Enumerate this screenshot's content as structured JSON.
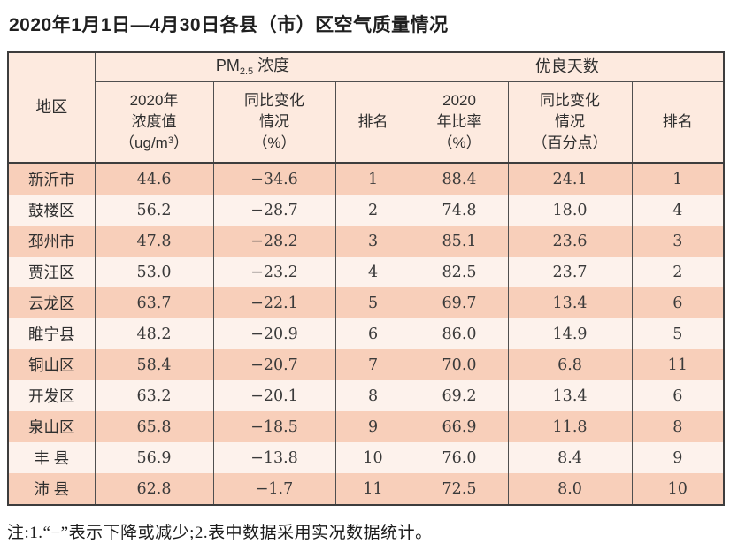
{
  "page": {
    "title": "2020年1月1日—4月30日各县（市）区空气质量情况",
    "note": "注:1.“−”表示下降或减少;2.表中数据采用实况数据统计。"
  },
  "table": {
    "region_header": "地区",
    "group_pm": {
      "prefix": "PM",
      "sub": "2.5",
      "suffix": " 浓度"
    },
    "group_days": "优良天数",
    "sub_headers": {
      "pm_value_lines": "2020年\n浓度值",
      "pm_value_unit_prefix": "（ug/m",
      "pm_value_unit_sup": "3",
      "pm_value_unit_suffix": "）",
      "pm_change": "同比变化\n情况\n（%）",
      "pm_rank": "排名",
      "days_rate": "2020\n年比率\n（%）",
      "days_change": "同比变化\n情况\n（百分点）",
      "days_rank": "排名"
    }
  },
  "chart_data": {
    "type": "table",
    "title": "2020年1月1日—4月30日各县（市）区空气质量情况",
    "columns": [
      "地区",
      "2020年浓度值（ug/m3）",
      "同比变化情况（%）",
      "排名",
      "2020年比率（%）",
      "同比变化情况（百分点）",
      "排名"
    ],
    "column_groups": [
      "PM2.5浓度: 列2-4",
      "优良天数: 列5-7"
    ],
    "rows": [
      [
        "新沂市",
        "44.6",
        "−34.6",
        "1",
        "88.4",
        "24.1",
        "1"
      ],
      [
        "鼓楼区",
        "56.2",
        "−28.7",
        "2",
        "74.8",
        "18.0",
        "4"
      ],
      [
        "邳州市",
        "47.8",
        "−28.2",
        "3",
        "85.1",
        "23.6",
        "3"
      ],
      [
        "贾汪区",
        "53.0",
        "−23.2",
        "4",
        "82.5",
        "23.7",
        "2"
      ],
      [
        "云龙区",
        "63.7",
        "−22.1",
        "5",
        "69.7",
        "13.4",
        "6"
      ],
      [
        "睢宁县",
        "48.2",
        "−20.9",
        "6",
        "86.0",
        "14.9",
        "5"
      ],
      [
        "铜山区",
        "58.4",
        "−20.7",
        "7",
        "70.0",
        "6.8",
        "11"
      ],
      [
        "开发区",
        "63.2",
        "−20.1",
        "8",
        "69.2",
        "13.4",
        "6"
      ],
      [
        "泉山区",
        "65.8",
        "−18.5",
        "9",
        "66.9",
        "11.8",
        "8"
      ],
      [
        "丰 县",
        "56.9",
        "−13.8",
        "10",
        "76.0",
        "8.4",
        "9"
      ],
      [
        "沛 县",
        "62.8",
        "−1.7",
        "11",
        "72.5",
        "8.0",
        "10"
      ]
    ],
    "footnote": "注:1.“−”表示下降或减少;2.表中数据采用实况数据统计。",
    "colors": {
      "header_bg": "#fdeadf",
      "row_odd_bg": "#f8cfba",
      "row_even_bg": "#fdf2ec",
      "border": "#3d3d3d"
    }
  }
}
